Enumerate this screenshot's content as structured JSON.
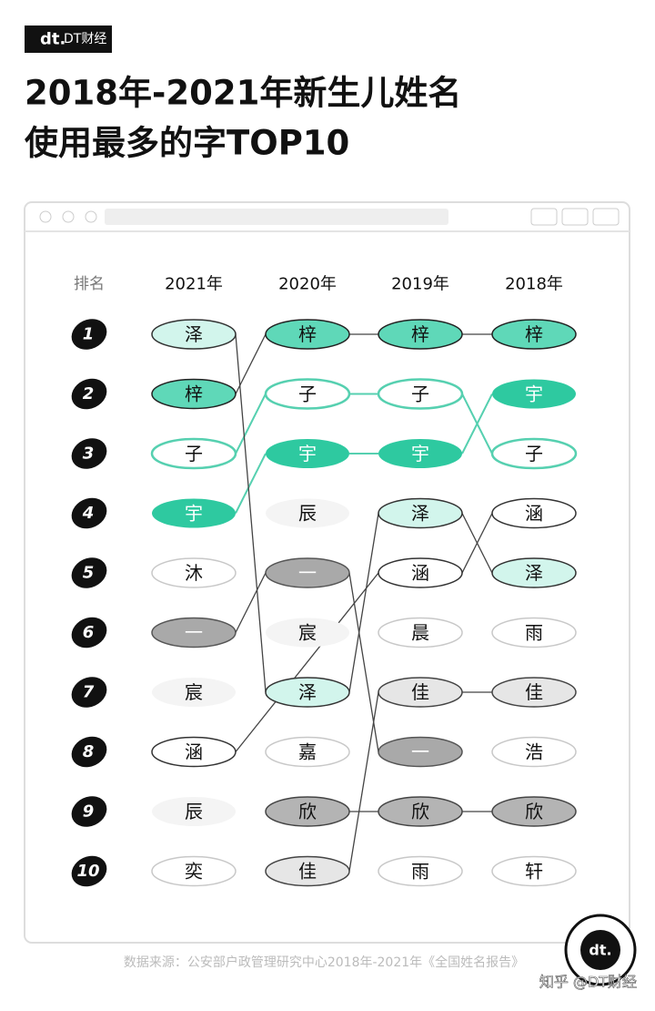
{
  "brand": {
    "mark": "dt.",
    "name": "DT财经"
  },
  "title": [
    "2018年-2021年新生儿姓名",
    "使用最多的字TOP10"
  ],
  "rank_header": "排名",
  "ranks": [
    1,
    2,
    3,
    4,
    5,
    6,
    7,
    8,
    9,
    10
  ],
  "columns": [
    {
      "year": "2021年",
      "cells": [
        {
          "char": "泽",
          "style": "mint"
        },
        {
          "char": "梓",
          "style": "teal"
        },
        {
          "char": "子",
          "style": "teal-outline"
        },
        {
          "char": "宇",
          "style": "teal-solid"
        },
        {
          "char": "沐",
          "style": "plain"
        },
        {
          "char": "一",
          "style": "gray"
        },
        {
          "char": "宸",
          "style": "faint"
        },
        {
          "char": "涵",
          "style": "dark-outline"
        },
        {
          "char": "辰",
          "style": "faint"
        },
        {
          "char": "奕",
          "style": "plain"
        }
      ]
    },
    {
      "year": "2020年",
      "cells": [
        {
          "char": "梓",
          "style": "teal"
        },
        {
          "char": "子",
          "style": "teal-outline"
        },
        {
          "char": "宇",
          "style": "teal-solid"
        },
        {
          "char": "辰",
          "style": "faint"
        },
        {
          "char": "一",
          "style": "gray"
        },
        {
          "char": "宸",
          "style": "faint"
        },
        {
          "char": "泽",
          "style": "mint"
        },
        {
          "char": "嘉",
          "style": "plain"
        },
        {
          "char": "欣",
          "style": "silver"
        },
        {
          "char": "佳",
          "style": "light-gray"
        }
      ]
    },
    {
      "year": "2019年",
      "cells": [
        {
          "char": "梓",
          "style": "teal"
        },
        {
          "char": "子",
          "style": "teal-outline"
        },
        {
          "char": "宇",
          "style": "teal-solid"
        },
        {
          "char": "泽",
          "style": "mint"
        },
        {
          "char": "涵",
          "style": "dark-outline"
        },
        {
          "char": "晨",
          "style": "plain"
        },
        {
          "char": "佳",
          "style": "light-gray"
        },
        {
          "char": "一",
          "style": "gray"
        },
        {
          "char": "欣",
          "style": "silver"
        },
        {
          "char": "雨",
          "style": "plain"
        }
      ]
    },
    {
      "year": "2018年",
      "cells": [
        {
          "char": "梓",
          "style": "teal"
        },
        {
          "char": "宇",
          "style": "teal-solid"
        },
        {
          "char": "子",
          "style": "teal-outline"
        },
        {
          "char": "涵",
          "style": "dark-outline"
        },
        {
          "char": "泽",
          "style": "mint"
        },
        {
          "char": "雨",
          "style": "plain"
        },
        {
          "char": "佳",
          "style": "light-gray"
        },
        {
          "char": "浩",
          "style": "plain"
        },
        {
          "char": "欣",
          "style": "silver"
        },
        {
          "char": "轩",
          "style": "plain"
        }
      ]
    }
  ],
  "source": "数据来源：公安部户政管理研究中心2018年-2021年《全国姓名报告》",
  "watermark": "知乎 @DT财经"
}
